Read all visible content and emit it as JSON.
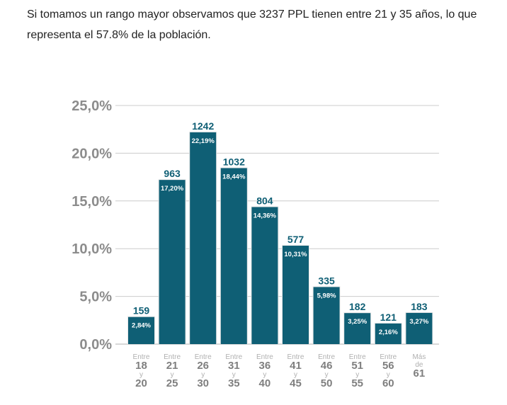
{
  "intro_text": "Si tomamos un rango mayor observamos que 3237 PPL tienen entre 21 y 35 años, lo que representa el 57.8% de la población.",
  "colors": {
    "bar": "#0f5f75",
    "count_label": "#0f5f75",
    "pct_label": "#ffffff",
    "ytick": "#8c8c8c",
    "cat_light": "#b0b0b0",
    "cat_dark": "#7f7f7f",
    "grid": "#cccccc",
    "bar_outline": "#e8e8e8"
  },
  "chart_data": {
    "type": "bar",
    "categories": [
      [
        "Entre",
        "18",
        "y",
        "20"
      ],
      [
        "Entre",
        "21",
        "y",
        "25"
      ],
      [
        "Entre",
        "26",
        "y",
        "30"
      ],
      [
        "Entre",
        "31",
        "y",
        "35"
      ],
      [
        "Entre",
        "36",
        "y",
        "40"
      ],
      [
        "Entre",
        "41",
        "y",
        "45"
      ],
      [
        "Entre",
        "46",
        "y",
        "50"
      ],
      [
        "Entre",
        "51",
        "y",
        "55"
      ],
      [
        "Entre",
        "56",
        "y",
        "60"
      ],
      [
        "Más",
        "de",
        "61"
      ]
    ],
    "values": [
      2.84,
      17.2,
      22.19,
      18.44,
      14.36,
      10.31,
      5.98,
      3.25,
      2.16,
      3.27
    ],
    "pct_labels": [
      "2,84%",
      "17,20%",
      "22,19%",
      "18,44%",
      "14,36%",
      "10,31%",
      "5,98%",
      "3,25%",
      "2,16%",
      "3,27%"
    ],
    "counts": [
      "159",
      "963",
      "1242",
      "1032",
      "804",
      "577",
      "335",
      "182",
      "121",
      "183"
    ],
    "yticks": [
      "0,0%",
      "5,0%",
      "10,0%",
      "15,0%",
      "20,0%",
      "25,0%"
    ],
    "ytick_values": [
      0,
      5,
      10,
      15,
      20,
      25
    ],
    "ylim": [
      0,
      25
    ],
    "grid": true,
    "title": "",
    "xlabel": "",
    "ylabel": ""
  }
}
